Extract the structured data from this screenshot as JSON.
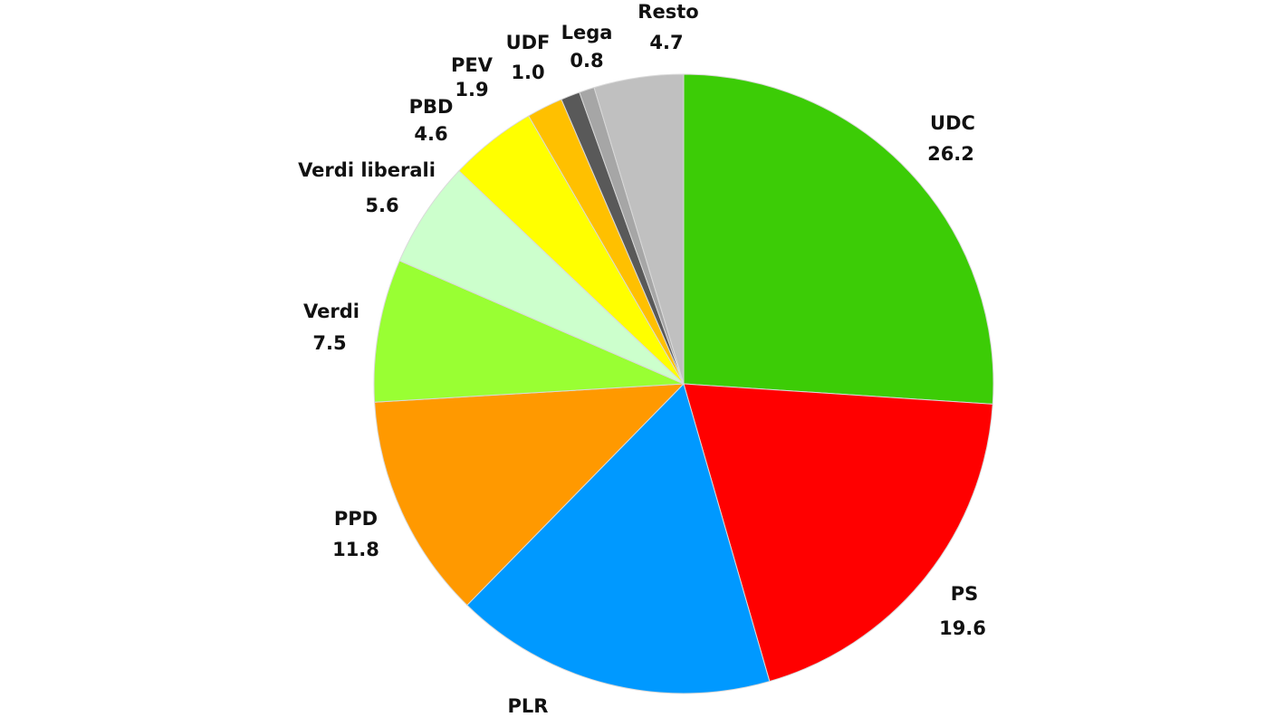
{
  "chart_data": {
    "type": "pie",
    "title": "",
    "start": "top-clockwise",
    "slices": [
      {
        "label": "UDC",
        "value": 26.2,
        "color": "#3ccc06"
      },
      {
        "label": "PS",
        "value": 19.6,
        "color": "#ff0000"
      },
      {
        "label": "PLR",
        "value": 16.9,
        "color": "#0099ff"
      },
      {
        "label": "PPD",
        "value": 11.8,
        "color": "#ff9900"
      },
      {
        "label": "Verdi",
        "value": 7.5,
        "color": "#99ff33"
      },
      {
        "label": "Verdi liberali",
        "value": 5.6,
        "color": "#ccffcc"
      },
      {
        "label": "PBD",
        "value": 4.6,
        "color": "#ffff00"
      },
      {
        "label": "PEV",
        "value": 1.9,
        "color": "#ffc000"
      },
      {
        "label": "UDF",
        "value": 1.0,
        "color": "#595959"
      },
      {
        "label": "Lega",
        "value": 0.8,
        "color": "#a6a6a6"
      },
      {
        "label": "Resto",
        "value": 4.7,
        "color": "#c0c0c0"
      }
    ]
  }
}
